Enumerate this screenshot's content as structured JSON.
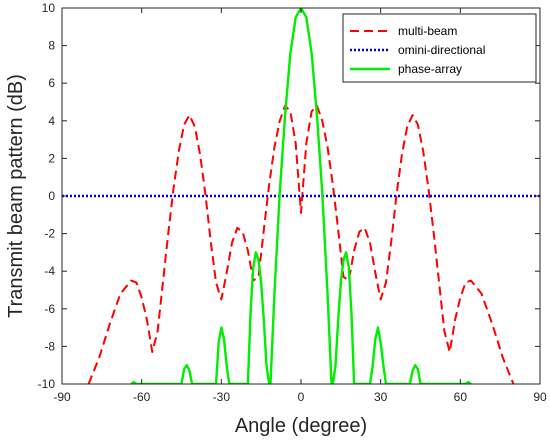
{
  "chart_data": {
    "type": "line",
    "title": "",
    "xlabel": "Angle (degree)",
    "ylabel": "Transmit beam pattern (dB)",
    "xlim": [
      -90,
      90
    ],
    "ylim": [
      -10,
      10
    ],
    "xticks": [
      -90,
      -60,
      -30,
      0,
      30,
      60,
      90
    ],
    "yticks": [
      -10,
      -8,
      -6,
      -4,
      -2,
      0,
      2,
      4,
      6,
      8,
      10
    ],
    "grid": false,
    "legend_position": "top-right",
    "series": [
      {
        "name": "multi-beam",
        "color": "#ff0000",
        "style": "dashed",
        "x": [
          -80,
          -76,
          -72,
          -68,
          -64,
          -62,
          -60,
          -58,
          -56,
          -54,
          -52,
          -50,
          -48,
          -46,
          -44,
          -42,
          -40,
          -38,
          -36,
          -34,
          -32,
          -30,
          -28,
          -26,
          -24,
          -22,
          -20,
          -18,
          -16,
          -14,
          -12,
          -10,
          -8,
          -6,
          -4,
          -2,
          0,
          2,
          4,
          6,
          8,
          10,
          12,
          14,
          16,
          18,
          20,
          22,
          24,
          26,
          28,
          30,
          32,
          34,
          36,
          38,
          40,
          42,
          44,
          46,
          48,
          50,
          52,
          54,
          56,
          58,
          60,
          62,
          64,
          68,
          72,
          76,
          80
        ],
        "y": [
          -10,
          -8.6,
          -6.8,
          -5.2,
          -4.5,
          -4.6,
          -5.4,
          -6.6,
          -8.3,
          -7.2,
          -4.6,
          -2.0,
          0.4,
          2.4,
          3.8,
          4.3,
          3.7,
          2.2,
          0.1,
          -2.4,
          -4.6,
          -5.5,
          -4.1,
          -2.5,
          -1.7,
          -1.9,
          -2.9,
          -4.5,
          -4.3,
          -1.8,
          0.6,
          2.6,
          4.0,
          4.8,
          4.5,
          2.8,
          -0.9,
          2.8,
          4.5,
          4.8,
          4.0,
          2.6,
          0.6,
          -1.8,
          -4.3,
          -4.5,
          -2.9,
          -1.9,
          -1.7,
          -2.5,
          -4.1,
          -5.5,
          -4.6,
          -2.4,
          0.1,
          2.2,
          3.7,
          4.3,
          3.8,
          2.4,
          0.4,
          -2.0,
          -4.6,
          -7.2,
          -8.3,
          -6.6,
          -5.4,
          -4.6,
          -4.5,
          -5.2,
          -6.8,
          -8.6,
          -10
        ]
      },
      {
        "name": "omini-directional",
        "color": "#0000cc",
        "style": "dotted",
        "x": [
          -90,
          90
        ],
        "y": [
          0,
          0
        ]
      },
      {
        "name": "phase-array",
        "color": "#00ee00",
        "style": "solid",
        "x": [
          -64,
          -63,
          -62,
          -45,
          -44,
          -43,
          -42,
          -41,
          -32,
          -31,
          -30,
          -29,
          -28,
          -27,
          -26,
          -20,
          -19,
          -18,
          -17,
          -16,
          -15,
          -14,
          -13,
          -12,
          -11.5,
          -10,
          -8,
          -6,
          -4,
          -2,
          0,
          2,
          4,
          6,
          8,
          10,
          11.5,
          12,
          13,
          14,
          15,
          16,
          17,
          18,
          19,
          20,
          26,
          27,
          28,
          29,
          30,
          31,
          32,
          41,
          42,
          43,
          44,
          45,
          62,
          63,
          64
        ],
        "y": [
          -10,
          -9.9,
          -10,
          -10,
          -9.2,
          -9.0,
          -9.3,
          -10,
          -10,
          -7.8,
          -7.0,
          -7.6,
          -9.0,
          -10,
          -10,
          -10,
          -6.2,
          -3.8,
          -3.0,
          -3.4,
          -4.6,
          -6.6,
          -9.0,
          -10,
          -10,
          -5.2,
          0.2,
          4.3,
          7.6,
          9.5,
          10,
          9.5,
          7.6,
          4.3,
          0.2,
          -5.2,
          -10,
          -10,
          -9.0,
          -6.6,
          -4.6,
          -3.4,
          -3.0,
          -3.8,
          -6.2,
          -10,
          -10,
          -9.0,
          -7.6,
          -7.0,
          -7.8,
          -9.0,
          -10,
          -10,
          -9.3,
          -9.0,
          -9.2,
          -10,
          -10,
          -9.9,
          -10
        ]
      }
    ]
  }
}
